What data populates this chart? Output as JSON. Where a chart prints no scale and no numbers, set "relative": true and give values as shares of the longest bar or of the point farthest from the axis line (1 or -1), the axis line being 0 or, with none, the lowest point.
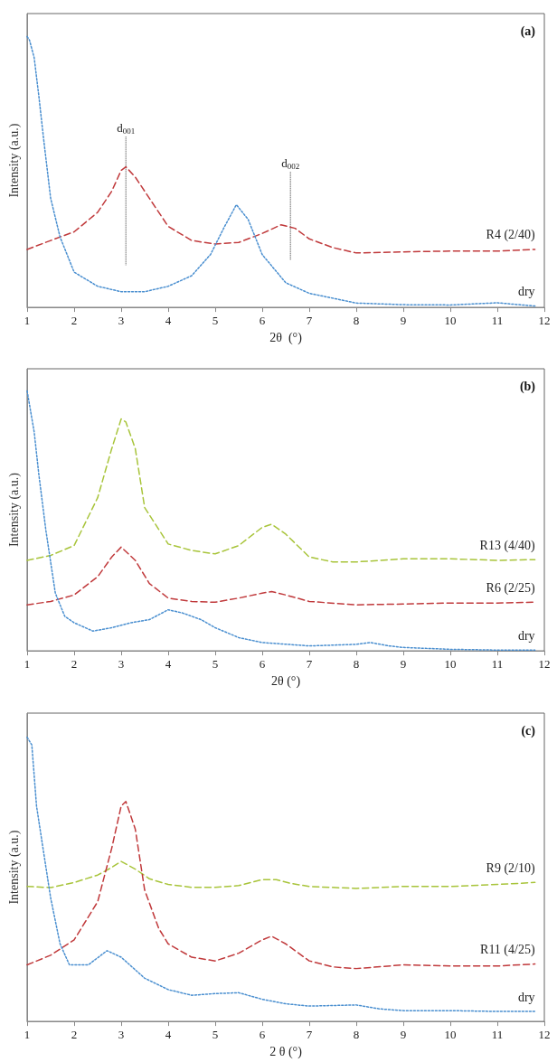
{
  "chart_data": [
    {
      "type": "line",
      "relative": true,
      "xlabel": "2θ  (°)",
      "ylabel": "Intensity (a.u.)",
      "xlim": [
        1,
        12
      ],
      "xticks": [
        1,
        2,
        3,
        4,
        5,
        6,
        7,
        8,
        9,
        10,
        11,
        12
      ],
      "grid": false,
      "legend": false,
      "marker": "none",
      "annotations": [
        "(a)"
      ],
      "ref_lines": [
        {
          "axis": "x",
          "value": 3.1,
          "label": "d$_{001}$",
          "line_style": "dotted"
        },
        {
          "axis": "x",
          "value": 6.6,
          "label": "d$_{002}$",
          "line_style": "dotted"
        }
      ],
      "series": [
        {
          "name": "R4 (2/40)",
          "color": "#c0393b",
          "line_style": "dashed",
          "x": [
            1,
            1.5,
            2,
            2.5,
            2.8,
            3.0,
            3.1,
            3.3,
            3.6,
            4,
            4.5,
            5,
            5.5,
            6,
            6.4,
            6.7,
            7,
            7.5,
            8,
            9,
            10,
            11,
            11.8
          ],
          "values": [
            0.214,
            0.247,
            0.279,
            0.351,
            0.429,
            0.506,
            0.519,
            0.481,
            0.403,
            0.299,
            0.247,
            0.234,
            0.24,
            0.273,
            0.305,
            0.292,
            0.253,
            0.221,
            0.201,
            0.205,
            0.208,
            0.208,
            0.214
          ]
        },
        {
          "name": "dry",
          "color": "#4a8fd0",
          "line_style": "dotted",
          "x": [
            1,
            1.05,
            1.15,
            1.25,
            1.35,
            1.5,
            1.7,
            2,
            2.5,
            3,
            3.5,
            4,
            4.5,
            4.9,
            5.2,
            5.45,
            5.7,
            6,
            6.5,
            7,
            8,
            9,
            10,
            11,
            11.8
          ],
          "values": [
            1.0,
            0.987,
            0.922,
            0.779,
            0.623,
            0.403,
            0.26,
            0.13,
            0.078,
            0.058,
            0.058,
            0.078,
            0.117,
            0.195,
            0.299,
            0.379,
            0.325,
            0.195,
            0.091,
            0.052,
            0.016,
            0.01,
            0.009,
            0.017,
            0.005
          ]
        }
      ]
    },
    {
      "type": "line",
      "relative": true,
      "xlabel": "2θ (°)",
      "ylabel": "Intensity (a.u.)",
      "xlim": [
        1,
        12
      ],
      "xticks": [
        1,
        2,
        3,
        4,
        5,
        6,
        7,
        8,
        9,
        10,
        11,
        12
      ],
      "grid": false,
      "legend": false,
      "marker": "none",
      "annotations": [
        "(b)"
      ],
      "series": [
        {
          "name": "R13 (4/40)",
          "color": "#a8c43a",
          "line_style": "dashed",
          "x": [
            1,
            1.5,
            2,
            2.5,
            2.8,
            3.0,
            3.1,
            3.3,
            3.5,
            4,
            4.5,
            5,
            5.5,
            6,
            6.2,
            6.5,
            7,
            7.5,
            8,
            9,
            10,
            11,
            11.8
          ],
          "values": [
            0.348,
            0.367,
            0.405,
            0.589,
            0.778,
            0.892,
            0.88,
            0.778,
            0.551,
            0.411,
            0.386,
            0.373,
            0.405,
            0.475,
            0.487,
            0.449,
            0.361,
            0.342,
            0.342,
            0.354,
            0.354,
            0.348,
            0.351
          ]
        },
        {
          "name": "R6 (2/25)",
          "color": "#c0393b",
          "line_style": "dashed",
          "x": [
            1,
            1.5,
            2,
            2.5,
            2.8,
            3.0,
            3.3,
            3.6,
            4,
            4.5,
            5,
            5.5,
            6,
            6.2,
            6.5,
            7,
            8,
            9,
            10,
            11,
            11.8
          ],
          "values": [
            0.177,
            0.19,
            0.215,
            0.285,
            0.361,
            0.399,
            0.348,
            0.259,
            0.203,
            0.19,
            0.187,
            0.203,
            0.222,
            0.228,
            0.215,
            0.19,
            0.177,
            0.18,
            0.184,
            0.184,
            0.187
          ]
        },
        {
          "name": "dry",
          "color": "#4a8fd0",
          "line_style": "dotted",
          "x": [
            1,
            1.15,
            1.25,
            1.4,
            1.6,
            1.8,
            2.0,
            2.4,
            2.8,
            3.2,
            3.6,
            4.0,
            4.3,
            4.7,
            5,
            5.5,
            6,
            7,
            8,
            8.3,
            8.7,
            9,
            10,
            11,
            11.8
          ],
          "values": [
            1.0,
            0.842,
            0.677,
            0.462,
            0.222,
            0.133,
            0.108,
            0.076,
            0.089,
            0.108,
            0.12,
            0.158,
            0.146,
            0.12,
            0.089,
            0.051,
            0.032,
            0.019,
            0.025,
            0.032,
            0.019,
            0.013,
            0.006,
            0.003,
            0.003
          ]
        }
      ]
    },
    {
      "type": "line",
      "relative": true,
      "xlabel": "2 θ (°)",
      "ylabel": "Intensity (a.u.)",
      "xlim": [
        1,
        12
      ],
      "xticks": [
        1,
        2,
        3,
        4,
        5,
        6,
        7,
        8,
        9,
        10,
        11,
        12
      ],
      "grid": false,
      "legend": false,
      "marker": "none",
      "annotations": [
        "(c)"
      ],
      "series": [
        {
          "name": "R9 (2/10)",
          "color": "#a8c43a",
          "line_style": "dashed",
          "x": [
            1,
            1.5,
            2,
            2.5,
            2.8,
            3.0,
            3.3,
            3.6,
            4,
            4.5,
            5,
            5.5,
            6,
            6.3,
            6.6,
            7,
            8,
            9,
            10,
            11,
            11.8
          ],
          "values": [
            0.475,
            0.471,
            0.489,
            0.515,
            0.542,
            0.563,
            0.536,
            0.502,
            0.482,
            0.472,
            0.472,
            0.478,
            0.499,
            0.499,
            0.486,
            0.475,
            0.468,
            0.475,
            0.475,
            0.482,
            0.489
          ]
        },
        {
          "name": "R11 (4/25)",
          "color": "#c0393b",
          "line_style": "dashed",
          "x": [
            1,
            1.5,
            2,
            2.5,
            2.8,
            3.0,
            3.1,
            3.3,
            3.5,
            3.8,
            4,
            4.5,
            5,
            5.5,
            6,
            6.2,
            6.5,
            7,
            7.5,
            8,
            9,
            10,
            11,
            11.8
          ],
          "values": [
            0.199,
            0.233,
            0.287,
            0.421,
            0.61,
            0.758,
            0.774,
            0.677,
            0.462,
            0.327,
            0.273,
            0.226,
            0.213,
            0.24,
            0.287,
            0.3,
            0.273,
            0.213,
            0.192,
            0.186,
            0.199,
            0.195,
            0.195,
            0.202
          ]
        },
        {
          "name": "dry",
          "color": "#4a8fd0",
          "line_style": "dotted",
          "x": [
            1,
            1.1,
            1.2,
            1.3,
            1.5,
            1.7,
            1.9,
            2.3,
            2.7,
            3,
            3.5,
            4,
            4.5,
            5,
            5.5,
            6,
            6.5,
            7,
            8,
            8.5,
            9,
            10,
            11,
            11.8
          ],
          "values": [
            1.0,
            0.973,
            0.758,
            0.65,
            0.435,
            0.273,
            0.199,
            0.199,
            0.249,
            0.226,
            0.152,
            0.112,
            0.092,
            0.098,
            0.101,
            0.078,
            0.062,
            0.054,
            0.058,
            0.044,
            0.038,
            0.038,
            0.035,
            0.035
          ]
        }
      ]
    }
  ]
}
